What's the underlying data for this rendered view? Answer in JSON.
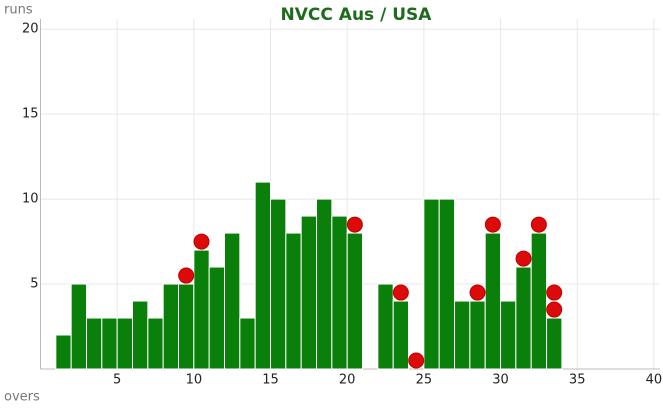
{
  "chart_data": {
    "type": "bar",
    "title": "NVCC Aus / USA",
    "y_label": "runs",
    "x_label": "overs",
    "x": [
      1,
      2,
      3,
      4,
      5,
      6,
      7,
      8,
      9,
      10,
      11,
      12,
      13,
      14,
      15,
      16,
      17,
      18,
      19,
      20,
      21,
      22,
      23,
      24,
      25,
      26,
      27,
      28,
      29,
      30,
      31,
      32,
      33
    ],
    "values": [
      2,
      5,
      3,
      3,
      3,
      4,
      3,
      5,
      5,
      7,
      6,
      8,
      3,
      11,
      10,
      8,
      9,
      10,
      9,
      8,
      0,
      5,
      4,
      0,
      10,
      10,
      4,
      4,
      8,
      4,
      6,
      8,
      3
    ],
    "color": "#0a800a",
    "wickets": {
      "color": "#dd0a0a",
      "x": [
        9,
        10,
        20,
        23,
        24,
        28,
        29,
        31,
        32,
        33,
        33
      ],
      "y": [
        5.5,
        7.5,
        8.5,
        4.5,
        0.5,
        4.5,
        8.5,
        6.5,
        8.5,
        4.5,
        3.5
      ]
    },
    "xlim": [
      0,
      40.4
    ],
    "xticks": [
      5,
      10,
      15,
      20,
      25,
      30,
      35,
      40
    ],
    "ylim": [
      0,
      20.6
    ],
    "yticks": [
      5,
      10,
      15,
      20
    ],
    "grid": true
  }
}
